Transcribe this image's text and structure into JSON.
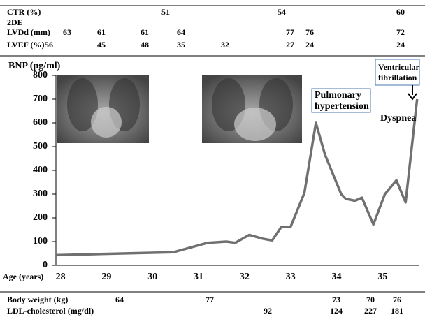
{
  "chart_data": {
    "type": "line",
    "y_label": "BNP (pg/ml)",
    "x_label": "Age (years)",
    "x": [
      27.9,
      28.95,
      30.45,
      31.2,
      31.6,
      31.8,
      32.1,
      32.4,
      32.6,
      32.8,
      33.0,
      33.3,
      33.55,
      33.75,
      34.1,
      34.2,
      34.4,
      34.55,
      34.8,
      35.05,
      35.3,
      35.5,
      35.75
    ],
    "values": [
      43,
      48,
      55,
      95,
      100,
      95,
      128,
      112,
      105,
      162,
      162,
      305,
      600,
      465,
      300,
      280,
      272,
      285,
      172,
      300,
      358,
      265,
      700
    ],
    "color": "#707070",
    "xlim": [
      27.9,
      35.8
    ],
    "xticks": [
      28,
      29,
      30,
      31,
      32,
      33,
      34,
      35
    ],
    "ylim": [
      0,
      800
    ],
    "yticks": [
      0,
      100,
      200,
      300,
      400,
      500,
      600,
      700,
      800
    ],
    "annotations": [
      [
        "Pulmonary",
        "hypertension"
      ],
      [
        "Ventricular",
        "fibrillation"
      ],
      [
        "Dyspnea"
      ]
    ]
  },
  "header_rows": [
    {
      "label": "CTR (%)",
      "values": [
        51,
        54,
        60
      ]
    },
    {
      "label": "2DE",
      "values": []
    },
    {
      "label": "LVDd (mm)",
      "values": [
        63,
        61,
        61,
        64,
        77,
        76,
        72
      ]
    },
    {
      "label": "LVEF (%)",
      "values": [
        56,
        45,
        48,
        35,
        32,
        27,
        24,
        24
      ]
    }
  ],
  "footer_rows": [
    {
      "label": "Body weight (kg)",
      "values": [
        64,
        77,
        73,
        70,
        76
      ]
    },
    {
      "label": "LDL-cholesterol (mg/dl)",
      "values": [
        92,
        124,
        227,
        181
      ]
    }
  ]
}
